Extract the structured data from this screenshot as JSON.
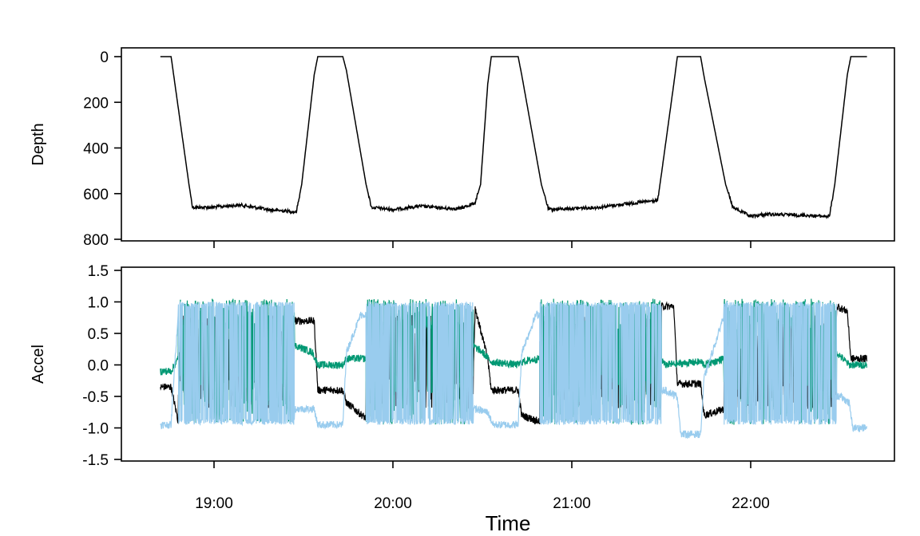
{
  "chart_data": [
    {
      "type": "line",
      "ylabel": "Depth",
      "yticks": [
        0,
        200,
        400,
        600,
        800
      ],
      "ylim": [
        800,
        0
      ],
      "y_reversed": true,
      "x_unit": "hours",
      "xlim_hours": [
        18.63,
        22.65
      ],
      "series": [
        {
          "color": "#000000",
          "x_hours": [
            18.7,
            18.76,
            18.86,
            18.88,
            18.98,
            19.15,
            19.3,
            19.46,
            19.49,
            19.56,
            19.58,
            19.72,
            19.74,
            19.85,
            19.88,
            20.0,
            20.15,
            20.3,
            20.38,
            20.46,
            20.49,
            20.53,
            20.55,
            20.7,
            20.72,
            20.83,
            20.87,
            21.0,
            21.15,
            21.3,
            21.48,
            21.5,
            21.57,
            21.59,
            21.72,
            21.74,
            21.86,
            21.9,
            22.0,
            22.1,
            22.3,
            22.44,
            22.47,
            22.54,
            22.56,
            22.65
          ],
          "y": [
            0,
            0,
            560,
            660,
            660,
            650,
            670,
            680,
            560,
            80,
            0,
            0,
            60,
            560,
            660,
            670,
            655,
            665,
            665,
            640,
            560,
            120,
            0,
            0,
            80,
            560,
            670,
            665,
            660,
            645,
            630,
            520,
            120,
            0,
            0,
            90,
            560,
            660,
            700,
            690,
            695,
            700,
            560,
            80,
            0,
            0
          ]
        }
      ]
    },
    {
      "type": "line",
      "ylabel": "Accel",
      "xlabel": "Time",
      "yticks": [
        -1.5,
        -1.0,
        -0.5,
        0.0,
        0.5,
        1.0,
        1.5
      ],
      "ytick_labels": [
        "-1.5",
        "-1.0",
        "-0.5",
        "0.0",
        "0.5",
        "1.0",
        "1.5"
      ],
      "ylim": [
        -1.5,
        1.5
      ],
      "x_unit": "hours",
      "xlim_hours": [
        18.63,
        22.65
      ],
      "xticks_hours": [
        19,
        20,
        21,
        22
      ],
      "xtick_labels": [
        "19:00",
        "20:00",
        "21:00",
        "22:00"
      ],
      "series": [
        {
          "color": "#000000",
          "oscillating": [
            [
              18.8,
              19.45
            ],
            [
              19.85,
              20.45
            ],
            [
              20.82,
              21.5
            ],
            [
              21.85,
              22.48
            ]
          ],
          "x_hours": [
            18.7,
            18.76,
            18.8,
            18.84,
            19.45,
            19.46,
            19.56,
            19.58,
            19.72,
            19.74,
            19.85,
            19.85,
            20.45,
            20.46,
            20.53,
            20.55,
            20.7,
            20.72,
            20.82,
            20.82,
            21.5,
            21.5,
            21.57,
            21.59,
            21.72,
            21.74,
            21.85,
            21.85,
            22.48,
            22.48,
            22.54,
            22.56,
            22.65
          ],
          "y": [
            -0.35,
            -0.35,
            -0.9,
            -0.6,
            0.7,
            0.7,
            0.7,
            -0.4,
            -0.4,
            -0.6,
            -0.85,
            0.0,
            0.0,
            0.9,
            0.1,
            -0.4,
            -0.4,
            -0.8,
            -0.9,
            0.0,
            0.0,
            0.93,
            0.93,
            -0.3,
            -0.3,
            -0.8,
            -0.7,
            0.0,
            0.0,
            0.93,
            0.85,
            0.1,
            0.1
          ]
        },
        {
          "color": "#009873",
          "oscillating": [
            [
              18.8,
              19.45
            ],
            [
              19.85,
              20.45
            ],
            [
              20.82,
              21.5
            ],
            [
              21.85,
              22.48
            ]
          ],
          "x_hours": [
            18.7,
            18.76,
            18.8,
            19.45,
            19.46,
            19.55,
            19.58,
            19.72,
            19.74,
            19.85,
            20.45,
            20.5,
            20.55,
            20.7,
            20.72,
            20.82,
            21.5,
            21.52,
            21.72,
            21.74,
            21.85,
            22.48,
            22.55,
            22.65
          ],
          "y": [
            -0.1,
            -0.1,
            0.1,
            0.3,
            0.3,
            0.2,
            0.0,
            0.0,
            0.1,
            0.1,
            0.3,
            0.2,
            0.05,
            0.0,
            0.05,
            0.1,
            0.1,
            0.0,
            0.05,
            0.0,
            0.1,
            0.2,
            0.0,
            0.0
          ]
        },
        {
          "color": "#99ccee",
          "oscillating": [
            [
              18.8,
              19.45
            ],
            [
              19.85,
              20.45
            ],
            [
              20.82,
              21.5
            ],
            [
              21.85,
              22.48
            ]
          ],
          "x_hours": [
            18.7,
            18.76,
            18.78,
            18.8,
            19.45,
            19.46,
            19.56,
            19.58,
            19.72,
            19.74,
            19.82,
            19.85,
            20.45,
            20.46,
            20.53,
            20.56,
            20.7,
            20.72,
            20.8,
            20.82,
            21.5,
            21.52,
            21.59,
            21.61,
            21.72,
            21.74,
            21.82,
            21.85,
            22.48,
            22.5,
            22.55,
            22.57,
            22.65
          ],
          "y": [
            -0.95,
            -0.95,
            0.0,
            0.8,
            -0.7,
            -0.7,
            -0.7,
            -0.95,
            -0.95,
            0.2,
            0.8,
            0.8,
            -0.7,
            -0.7,
            -0.75,
            -0.95,
            -0.95,
            0.2,
            0.8,
            0.8,
            -0.4,
            -0.4,
            -0.5,
            -1.1,
            -1.1,
            -0.2,
            0.5,
            0.8,
            -0.5,
            -0.5,
            -0.6,
            -1.0,
            -1.0
          ]
        }
      ]
    }
  ]
}
